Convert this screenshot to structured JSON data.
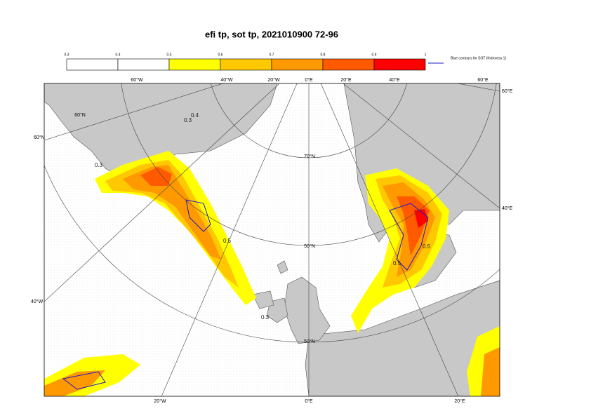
{
  "header": {
    "title": "efi tp, sot tp, 2021010900 72-96"
  },
  "colorbar": {
    "ticks": [
      0.3,
      0.4,
      0.5,
      0.6,
      0.7,
      0.8,
      0.9,
      1
    ],
    "colors": [
      "#ffffff",
      "#ffffff",
      "#ffff00",
      "#ffc800",
      "#ff9900",
      "#ff5a00",
      "#ff0000"
    ],
    "legend": "Blue contours for SOT (thickness 1)"
  },
  "map": {
    "labels": [
      "60°W",
      "40°W",
      "20°W",
      "0°E",
      "20°E",
      "40°E",
      "60°E",
      "60°N",
      "40°W",
      "60°E",
      "40°E",
      "20°W",
      "0°E",
      "20°E",
      "70°N",
      "60°N",
      "50°N",
      "50°N"
    ],
    "contour_labels": [
      "0.4",
      "0.3",
      "0.3",
      "0.5",
      "0.5",
      "0.3",
      "0.5"
    ]
  }
}
